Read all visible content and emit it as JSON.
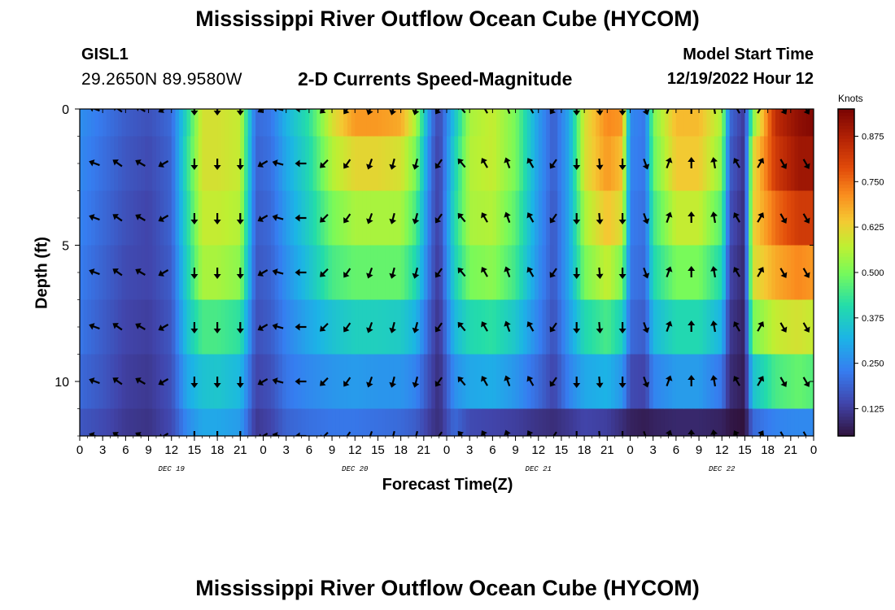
{
  "header": {
    "title": "Mississippi River Outflow Ocean Cube (HYCOM)",
    "station": "GISL1",
    "coords": "29.2650N  89.9580W",
    "subtitle": "2-D Currents Speed-Magnitude",
    "model_label": "Model Start Time",
    "model_time": "12/19/2022 Hour 12"
  },
  "footer_title": "Mississippi River Outflow Ocean Cube (HYCOM)",
  "chart_data": {
    "type": "heatmap",
    "title": "2-D Currents Speed-Magnitude",
    "xlabel": "Forecast Time(Z)",
    "ylabel": "Depth (ft)",
    "x_ticks": [
      "0",
      "3",
      "6",
      "9",
      "12",
      "15",
      "18",
      "21",
      "0",
      "3",
      "6",
      "9",
      "12",
      "15",
      "18",
      "21",
      "0",
      "3",
      "6",
      "9",
      "12",
      "15",
      "18",
      "21",
      "0",
      "3",
      "6",
      "9",
      "12",
      "15",
      "18",
      "21",
      "0"
    ],
    "day_labels": [
      "DEC 19",
      "DEC 20",
      "DEC 21",
      "DEC 22"
    ],
    "y_ticks": [
      "0",
      "5",
      "10"
    ],
    "ylim": [
      0,
      12
    ],
    "xlim_hours": [
      0,
      96
    ],
    "colorbar": {
      "unit": "Knots",
      "ticks": [
        "0.875",
        "0.750",
        "0.625",
        "0.500",
        "0.375",
        "0.250",
        "0.125"
      ],
      "range": [
        0.05,
        0.95
      ]
    },
    "depths_ft": [
      0,
      2,
      4,
      6,
      8,
      10,
      12
    ],
    "speed_profile_by_hour": [
      {
        "hour": 0,
        "speed": [
          0.26,
          0.25,
          0.24,
          0.23,
          0.22,
          0.2,
          0.17
        ]
      },
      {
        "hour": 3,
        "speed": [
          0.22,
          0.21,
          0.2,
          0.19,
          0.18,
          0.17,
          0.15
        ]
      },
      {
        "hour": 6,
        "speed": [
          0.18,
          0.17,
          0.16,
          0.15,
          0.14,
          0.13,
          0.12
        ]
      },
      {
        "hour": 9,
        "speed": [
          0.16,
          0.15,
          0.14,
          0.14,
          0.13,
          0.12,
          0.11
        ]
      },
      {
        "hour": 12,
        "speed": [
          0.2,
          0.19,
          0.19,
          0.18,
          0.17,
          0.16,
          0.15
        ]
      },
      {
        "hour": 14,
        "speed": [
          0.4,
          0.42,
          0.4,
          0.38,
          0.35,
          0.3,
          0.25
        ]
      },
      {
        "hour": 16,
        "speed": [
          0.6,
          0.6,
          0.58,
          0.55,
          0.45,
          0.35,
          0.3
        ]
      },
      {
        "hour": 18,
        "speed": [
          0.6,
          0.6,
          0.58,
          0.55,
          0.45,
          0.36,
          0.3
        ]
      },
      {
        "hour": 21,
        "speed": [
          0.58,
          0.58,
          0.56,
          0.52,
          0.42,
          0.33,
          0.28
        ]
      },
      {
        "hour": 23,
        "speed": [
          0.2,
          0.19,
          0.18,
          0.17,
          0.16,
          0.14,
          0.12
        ]
      },
      {
        "hour": 25,
        "speed": [
          0.22,
          0.21,
          0.2,
          0.19,
          0.18,
          0.16,
          0.14
        ]
      },
      {
        "hour": 27,
        "speed": [
          0.32,
          0.3,
          0.28,
          0.26,
          0.24,
          0.22,
          0.19
        ]
      },
      {
        "hour": 30,
        "speed": [
          0.42,
          0.4,
          0.38,
          0.35,
          0.3,
          0.25,
          0.21
        ]
      },
      {
        "hour": 33,
        "speed": [
          0.6,
          0.56,
          0.5,
          0.45,
          0.35,
          0.27,
          0.22
        ]
      },
      {
        "hour": 36,
        "speed": [
          0.7,
          0.62,
          0.55,
          0.48,
          0.38,
          0.28,
          0.22
        ]
      },
      {
        "hour": 39,
        "speed": [
          0.7,
          0.62,
          0.55,
          0.48,
          0.38,
          0.27,
          0.21
        ]
      },
      {
        "hour": 42,
        "speed": [
          0.68,
          0.6,
          0.55,
          0.48,
          0.37,
          0.27,
          0.2
        ]
      },
      {
        "hour": 44,
        "speed": [
          0.55,
          0.5,
          0.45,
          0.4,
          0.32,
          0.24,
          0.18
        ]
      },
      {
        "hour": 46,
        "speed": [
          0.22,
          0.2,
          0.19,
          0.18,
          0.16,
          0.14,
          0.12
        ]
      },
      {
        "hour": 47,
        "speed": [
          0.14,
          0.13,
          0.13,
          0.12,
          0.11,
          0.1,
          0.1
        ]
      },
      {
        "hour": 49,
        "speed": [
          0.35,
          0.38,
          0.4,
          0.38,
          0.33,
          0.26,
          0.2
        ]
      },
      {
        "hour": 51,
        "speed": [
          0.55,
          0.56,
          0.55,
          0.5,
          0.4,
          0.3,
          0.15
        ]
      },
      {
        "hour": 54,
        "speed": [
          0.58,
          0.58,
          0.56,
          0.52,
          0.42,
          0.31,
          0.14
        ]
      },
      {
        "hour": 57,
        "speed": [
          0.5,
          0.5,
          0.47,
          0.44,
          0.36,
          0.27,
          0.13
        ]
      },
      {
        "hour": 60,
        "speed": [
          0.28,
          0.28,
          0.27,
          0.26,
          0.24,
          0.2,
          0.11
        ]
      },
      {
        "hour": 62,
        "speed": [
          0.18,
          0.18,
          0.17,
          0.17,
          0.16,
          0.14,
          0.1
        ]
      },
      {
        "hour": 64,
        "speed": [
          0.3,
          0.3,
          0.3,
          0.3,
          0.28,
          0.24,
          0.12
        ]
      },
      {
        "hour": 66,
        "speed": [
          0.6,
          0.6,
          0.55,
          0.5,
          0.4,
          0.3,
          0.14
        ]
      },
      {
        "hour": 69,
        "speed": [
          0.72,
          0.7,
          0.65,
          0.58,
          0.45,
          0.32,
          0.13
        ]
      },
      {
        "hour": 71,
        "speed": [
          0.7,
          0.65,
          0.6,
          0.5,
          0.38,
          0.27,
          0.1
        ]
      },
      {
        "hour": 72,
        "speed": [
          0.25,
          0.24,
          0.23,
          0.22,
          0.2,
          0.15,
          0.08
        ]
      },
      {
        "hour": 74,
        "speed": [
          0.22,
          0.22,
          0.21,
          0.2,
          0.18,
          0.14,
          0.07
        ]
      },
      {
        "hour": 75,
        "speed": [
          0.5,
          0.48,
          0.44,
          0.4,
          0.33,
          0.24,
          0.08
        ]
      },
      {
        "hour": 78,
        "speed": [
          0.66,
          0.64,
          0.58,
          0.5,
          0.4,
          0.28,
          0.09
        ]
      },
      {
        "hour": 81,
        "speed": [
          0.66,
          0.64,
          0.58,
          0.5,
          0.4,
          0.28,
          0.09
        ]
      },
      {
        "hour": 84,
        "speed": [
          0.55,
          0.52,
          0.46,
          0.4,
          0.32,
          0.22,
          0.08
        ]
      },
      {
        "hour": 85,
        "speed": [
          0.2,
          0.18,
          0.16,
          0.14,
          0.12,
          0.1,
          0.06
        ]
      },
      {
        "hour": 87,
        "speed": [
          0.12,
          0.11,
          0.1,
          0.09,
          0.08,
          0.07,
          0.05
        ]
      },
      {
        "hour": 88,
        "speed": [
          0.5,
          0.6,
          0.62,
          0.6,
          0.5,
          0.35,
          0.2
        ]
      },
      {
        "hour": 91,
        "speed": [
          0.85,
          0.82,
          0.75,
          0.68,
          0.58,
          0.45,
          0.24
        ]
      },
      {
        "hour": 94,
        "speed": [
          0.92,
          0.9,
          0.82,
          0.72,
          0.6,
          0.48,
          0.25
        ]
      },
      {
        "hour": 96,
        "speed": [
          0.94,
          0.9,
          0.82,
          0.7,
          0.58,
          0.46,
          0.25
        ]
      }
    ],
    "arrow_hours": [
      2,
      5,
      8,
      11,
      15,
      18,
      21,
      24,
      26,
      29,
      32,
      35,
      38,
      41,
      44,
      47,
      50,
      53,
      56,
      59,
      62,
      65,
      68,
      71,
      74,
      77,
      80,
      83,
      86,
      89,
      92,
      95
    ],
    "arrow_depths_ft": [
      0,
      2,
      4,
      6,
      8,
      10,
      12
    ],
    "arrow_direction_deg_by_hour": [
      {
        "hour": 2,
        "deg": 290
      },
      {
        "hour": 5,
        "deg": 305
      },
      {
        "hour": 8,
        "deg": 300
      },
      {
        "hour": 11,
        "deg": 240
      },
      {
        "hour": 15,
        "deg": 180
      },
      {
        "hour": 18,
        "deg": 180
      },
      {
        "hour": 21,
        "deg": 180
      },
      {
        "hour": 24,
        "deg": 240
      },
      {
        "hour": 26,
        "deg": 285
      },
      {
        "hour": 29,
        "deg": 270
      },
      {
        "hour": 32,
        "deg": 225
      },
      {
        "hour": 35,
        "deg": 215
      },
      {
        "hour": 38,
        "deg": 200
      },
      {
        "hour": 41,
        "deg": 195
      },
      {
        "hour": 44,
        "deg": 195
      },
      {
        "hour": 47,
        "deg": 215
      },
      {
        "hour": 50,
        "deg": 320
      },
      {
        "hour": 53,
        "deg": 330
      },
      {
        "hour": 56,
        "deg": 340
      },
      {
        "hour": 59,
        "deg": 330
      },
      {
        "hour": 62,
        "deg": 215
      },
      {
        "hour": 65,
        "deg": 180
      },
      {
        "hour": 68,
        "deg": 175
      },
      {
        "hour": 71,
        "deg": 180
      },
      {
        "hour": 74,
        "deg": 160
      },
      {
        "hour": 77,
        "deg": 20
      },
      {
        "hour": 80,
        "deg": 0
      },
      {
        "hour": 83,
        "deg": 350
      },
      {
        "hour": 86,
        "deg": 330
      },
      {
        "hour": 89,
        "deg": 30
      },
      {
        "hour": 92,
        "deg": 150
      },
      {
        "hour": 95,
        "deg": 150
      }
    ]
  }
}
